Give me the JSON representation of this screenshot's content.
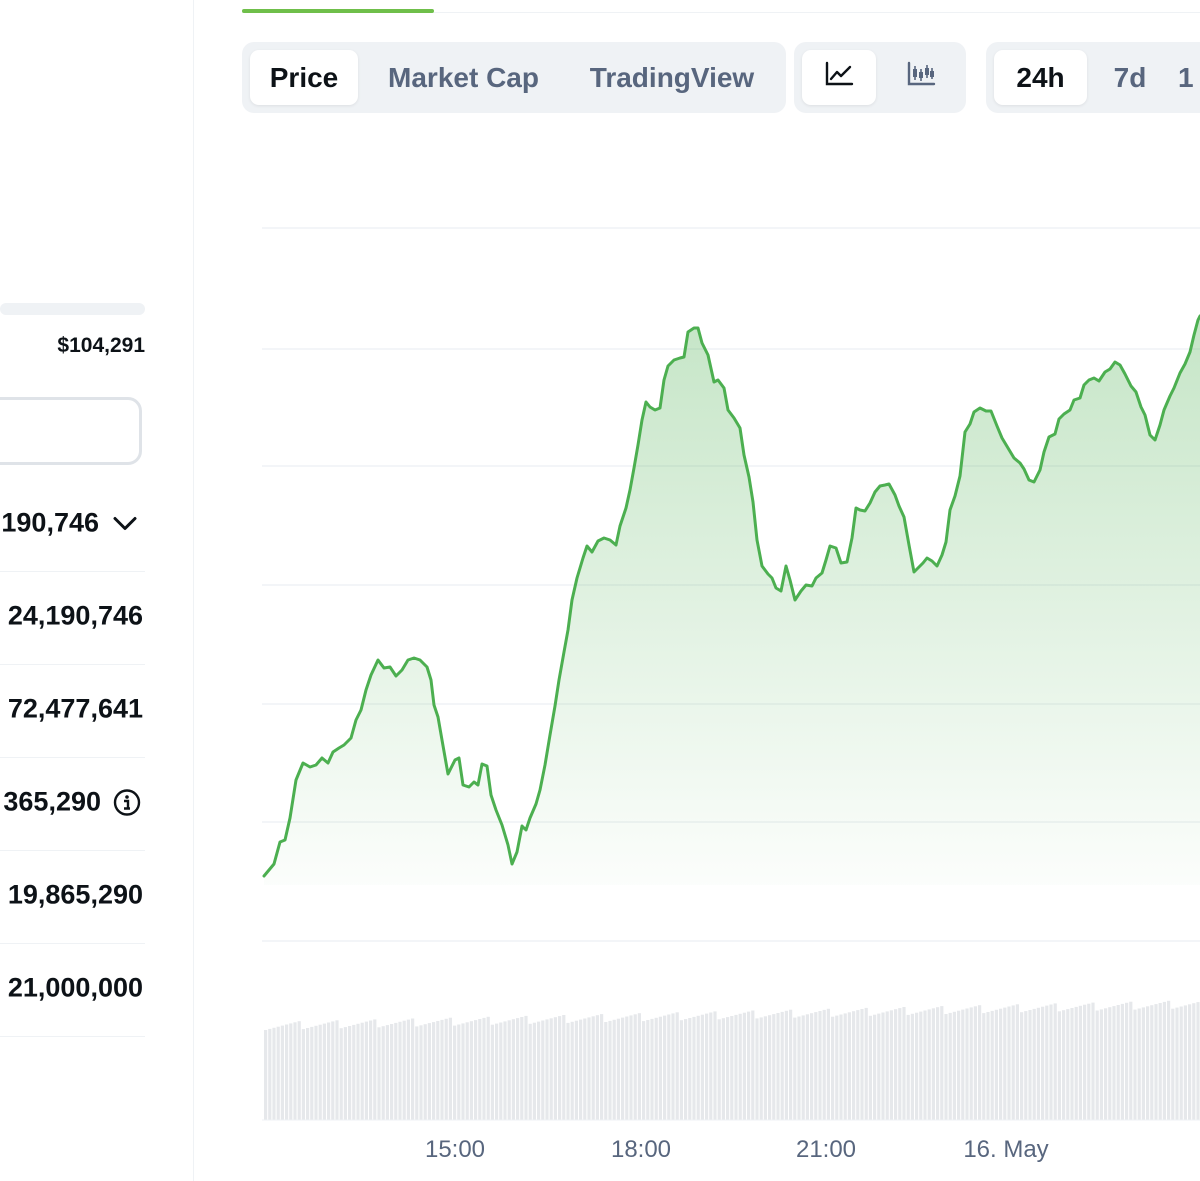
{
  "left_panel": {
    "high_24h": "$104,291",
    "stats": [
      {
        "value": "190,746",
        "icon": "chevron-down-icon"
      },
      {
        "value": "24,190,746"
      },
      {
        "value": "72,477,641"
      },
      {
        "value": "365,290",
        "icon": "info-icon"
      },
      {
        "value": "19,865,290"
      },
      {
        "value": "21,000,000"
      }
    ]
  },
  "tabs": {
    "view": {
      "items": [
        "Price",
        "Market Cap",
        "TradingView"
      ],
      "active": "Price"
    },
    "chart_type": {
      "items": [
        "line-chart-icon",
        "candlestick-icon"
      ],
      "active": "line-chart-icon"
    },
    "range": {
      "items": [
        "24h",
        "7d",
        "1"
      ],
      "active": "24h"
    }
  },
  "chart_data": {
    "type": "area",
    "x_tick_labels": [
      "15:00",
      "18:00",
      "21:00",
      "16. May"
    ],
    "line_color": "#4caf50",
    "grid": true
  }
}
